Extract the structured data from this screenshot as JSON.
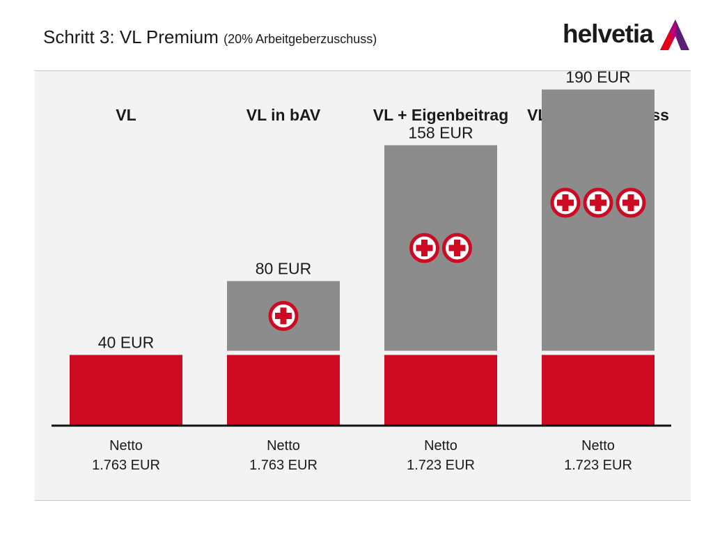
{
  "header": {
    "title": "Schritt 3: VL Premium",
    "subtitle": "(20% Arbeitgeberzuschuss)"
  },
  "logo": {
    "text": "helvetia",
    "colors": [
      "#e2001a",
      "#b3007a",
      "#5a1f75"
    ]
  },
  "colors": {
    "base": "#cc0a21",
    "extra": "#8c8c8c",
    "plus": "#cc0a21",
    "panel": "#f3f3f3"
  },
  "chart_data": {
    "type": "bar",
    "stacked": true,
    "categories": [
      "VL",
      "VL in bAV",
      "VL + Eigenbeitrag",
      "VL + AG-Zuschuss"
    ],
    "totals": [
      40,
      80,
      158,
      190
    ],
    "total_labels": [
      "40 EUR",
      "80 EUR",
      "158 EUR",
      "190 EUR"
    ],
    "series": [
      {
        "values": [
          40,
          40,
          40,
          40
        ]
      },
      {
        "values": [
          0,
          40,
          118,
          150
        ]
      }
    ],
    "plus_icons": [
      0,
      1,
      2,
      3
    ],
    "net_line1": [
      "Netto",
      "Netto",
      "Netto",
      "Netto"
    ],
    "net_line2": [
      "1.763 EUR",
      "1.763 EUR",
      "1.723 EUR",
      "1.723 EUR"
    ],
    "ylim": [
      0,
      190
    ]
  }
}
